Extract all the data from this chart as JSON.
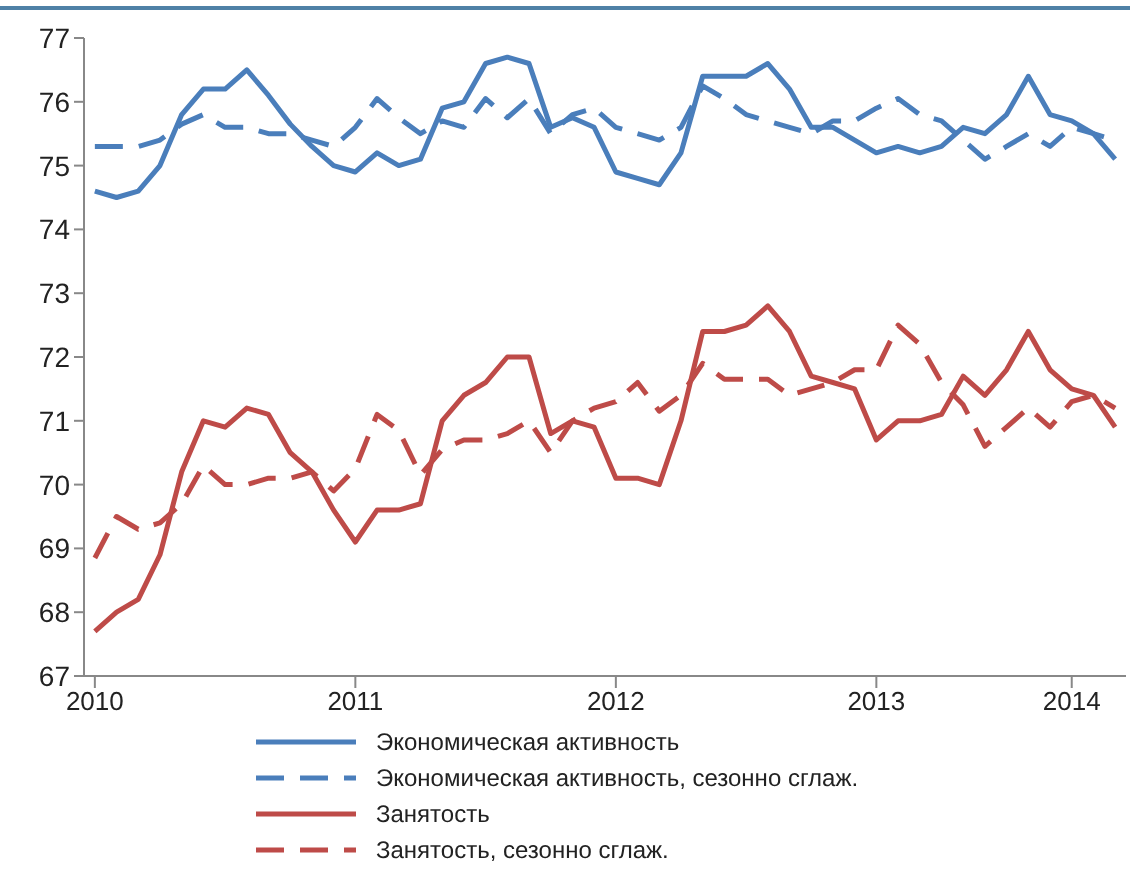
{
  "chart_data": {
    "type": "line",
    "categories": [
      "2010",
      null,
      null,
      null,
      null,
      null,
      null,
      null,
      null,
      null,
      null,
      null,
      "2011",
      null,
      null,
      null,
      null,
      null,
      null,
      null,
      null,
      null,
      null,
      null,
      "2012",
      null,
      null,
      null,
      null,
      null,
      null,
      null,
      null,
      null,
      null,
      null,
      "2013",
      null,
      null,
      null,
      null,
      null,
      null,
      null,
      null,
      "2014",
      null,
      null
    ],
    "series": [
      {
        "name": "Экономическая активность",
        "color": "#4a7ebb",
        "line_style": "solid",
        "values": [
          74.6,
          74.5,
          74.6,
          75.0,
          75.8,
          76.2,
          76.2,
          76.5,
          76.1,
          75.65,
          75.3,
          75.0,
          74.9,
          75.2,
          75.0,
          75.1,
          75.9,
          76.0,
          76.6,
          76.7,
          76.6,
          75.6,
          75.75,
          75.6,
          74.9,
          74.8,
          74.7,
          75.2,
          76.4,
          76.4,
          76.4,
          76.6,
          76.2,
          75.6,
          75.6,
          75.4,
          75.2,
          75.3,
          75.2,
          75.3,
          75.6,
          75.5,
          75.8,
          76.4,
          75.8,
          75.7,
          75.5,
          75.1
        ]
      },
      {
        "name": "Экономическая активность, сезонно сглаж.",
        "color": "#4a7ebb",
        "line_style": "dashed",
        "values": [
          75.3,
          75.3,
          75.3,
          75.4,
          75.65,
          75.8,
          75.6,
          75.6,
          75.5,
          75.5,
          75.4,
          75.3,
          75.6,
          76.05,
          75.75,
          75.5,
          75.7,
          75.6,
          76.05,
          75.75,
          76.05,
          75.5,
          75.8,
          75.9,
          75.6,
          75.5,
          75.4,
          75.6,
          76.25,
          76.05,
          75.8,
          75.7,
          75.6,
          75.5,
          75.7,
          75.7,
          75.9,
          76.05,
          75.8,
          75.7,
          75.4,
          75.1,
          75.3,
          75.5,
          75.3,
          75.6,
          75.5,
          75.4
        ]
      },
      {
        "name": "Занятость",
        "color": "#be4b48",
        "line_style": "solid",
        "values": [
          67.7,
          68.0,
          68.2,
          68.9,
          70.2,
          71.0,
          70.9,
          71.2,
          71.1,
          70.5,
          70.2,
          69.6,
          69.1,
          69.6,
          69.6,
          69.7,
          71.0,
          71.4,
          71.6,
          72.0,
          72.0,
          70.8,
          71.0,
          70.9,
          70.1,
          70.1,
          70.0,
          71.0,
          72.4,
          72.4,
          72.5,
          72.8,
          72.4,
          71.7,
          71.6,
          71.5,
          70.7,
          71.0,
          71.0,
          71.1,
          71.7,
          71.4,
          71.8,
          72.4,
          71.8,
          71.5,
          71.4,
          70.9
        ]
      },
      {
        "name": "Занятость, сезонно сглаж.",
        "color": "#be4b48",
        "line_style": "dashed",
        "values": [
          68.85,
          69.5,
          69.3,
          69.4,
          69.7,
          70.3,
          70.0,
          70.0,
          70.1,
          70.1,
          70.2,
          69.9,
          70.25,
          71.1,
          70.85,
          70.15,
          70.55,
          70.7,
          70.7,
          70.8,
          71.0,
          70.5,
          71.0,
          71.2,
          71.3,
          71.6,
          71.15,
          71.4,
          71.9,
          71.65,
          71.65,
          71.65,
          71.4,
          71.5,
          71.6,
          71.8,
          71.8,
          72.5,
          72.2,
          71.6,
          71.25,
          70.6,
          70.9,
          71.2,
          70.9,
          71.3,
          71.4,
          71.2
        ]
      }
    ],
    "ylim": [
      67,
      77
    ],
    "yticks": [
      67,
      68,
      69,
      70,
      71,
      72,
      73,
      74,
      75,
      76,
      77
    ],
    "grid": false,
    "legend": "bottom",
    "marker": "none"
  }
}
